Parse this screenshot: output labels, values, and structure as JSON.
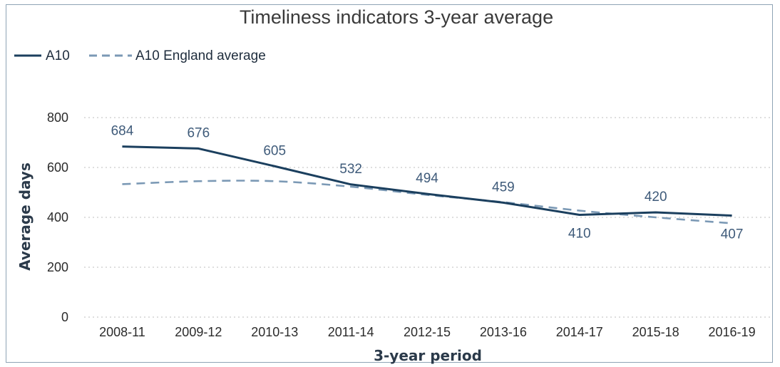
{
  "chart_data": {
    "type": "line",
    "title": "Timeliness indicators 3-year average",
    "xlabel": "3-year period",
    "ylabel": "Average days",
    "categories": [
      "2008-11",
      "2009-12",
      "2010-13",
      "2011-14",
      "2012-15",
      "2013-16",
      "2014-17",
      "2015-18",
      "2016-19"
    ],
    "ylim": [
      0,
      800
    ],
    "yticks": [
      0,
      200,
      400,
      600,
      800
    ],
    "grid": true,
    "legend_position": "top-left",
    "series": [
      {
        "name": "A10",
        "style": "solid",
        "color": "#1b3f5e",
        "values": [
          684,
          676,
          605,
          532,
          494,
          459,
          410,
          420,
          407
        ],
        "labels": [
          "684",
          "676",
          "605",
          "532",
          "494",
          "459",
          "410",
          "420",
          "407"
        ]
      },
      {
        "name": "A10 England average",
        "style": "dashed",
        "color": "#7b99b5",
        "values": [
          533,
          545,
          545,
          523,
          490,
          461,
          427,
          400,
          376
        ]
      }
    ]
  }
}
